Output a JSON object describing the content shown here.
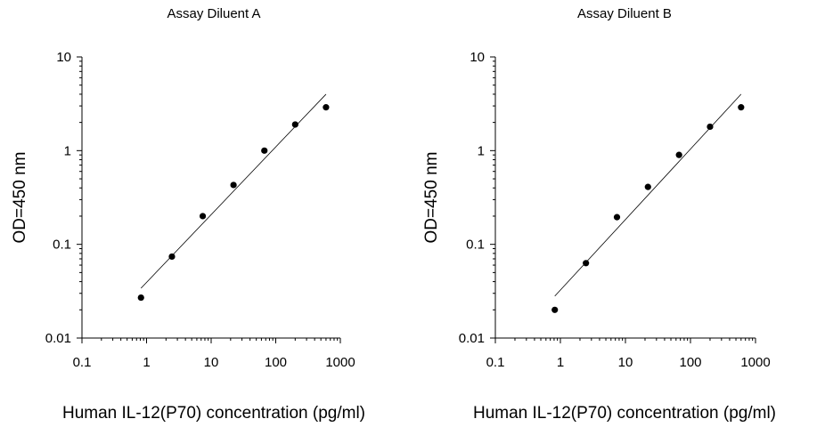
{
  "chart_data": [
    {
      "type": "scatter",
      "title": "Assay Diluent A",
      "xlabel": "Human IL-12(P70) concentration (pg/ml)",
      "ylabel": "OD=450 nm",
      "xscale": "log",
      "yscale": "log",
      "xlim": [
        0.1,
        1000
      ],
      "ylim": [
        0.01,
        10
      ],
      "xticks": [
        "0.1",
        "1",
        "10",
        "100",
        "1000"
      ],
      "yticks": [
        "0.01",
        "0.1",
        "1",
        "10"
      ],
      "grid": false,
      "series": [
        {
          "x": [
            0.82,
            2.47,
            7.41,
            22.2,
            66.7,
            200,
            600
          ],
          "y": [
            0.027,
            0.074,
            0.2,
            0.43,
            1.0,
            1.9,
            2.9
          ]
        }
      ],
      "fit_line": {
        "x": [
          0.82,
          600
        ],
        "y": [
          0.034,
          4.0
        ]
      }
    },
    {
      "type": "scatter",
      "title": "Assay Diluent B",
      "xlabel": "Human IL-12(P70) concentration (pg/ml)",
      "ylabel": "OD=450 nm",
      "xscale": "log",
      "yscale": "log",
      "xlim": [
        0.1,
        1000
      ],
      "ylim": [
        0.01,
        10
      ],
      "xticks": [
        "0.1",
        "1",
        "10",
        "100",
        "1000"
      ],
      "yticks": [
        "0.01",
        "0.1",
        "1",
        "10"
      ],
      "grid": false,
      "series": [
        {
          "x": [
            0.82,
            2.47,
            7.41,
            22.2,
            66.7,
            200,
            600
          ],
          "y": [
            0.02,
            0.063,
            0.195,
            0.41,
            0.9,
            1.8,
            2.9
          ]
        }
      ],
      "fit_line": {
        "x": [
          0.82,
          600
        ],
        "y": [
          0.028,
          4.0
        ]
      }
    }
  ]
}
